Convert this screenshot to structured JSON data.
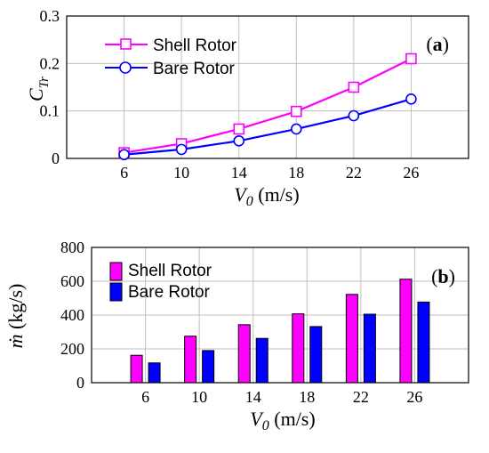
{
  "chart_data": [
    {
      "panel_label": "(a)",
      "type": "line",
      "x": [
        6,
        10,
        14,
        18,
        22,
        26
      ],
      "xlim": [
        2,
        30
      ],
      "ylim": [
        0,
        0.3
      ],
      "yticks": [
        "0",
        "0.1",
        "0.2",
        "0.3"
      ],
      "xticks": [
        "6",
        "10",
        "14",
        "18",
        "22",
        "26"
      ],
      "ylabel": "C",
      "ylabel_sub": "Tr",
      "xlabel": "V",
      "xlabel_sub": "0",
      "xlabel_unit": " (m/s)",
      "grid": true,
      "legend": "top-left",
      "series": [
        {
          "name": "Shell Rotor",
          "color": "#ff00ff",
          "marker": "square",
          "values": [
            0.012,
            0.031,
            0.062,
            0.099,
            0.15,
            0.21
          ]
        },
        {
          "name": "Bare Rotor",
          "color": "#0000ff",
          "marker": "circle",
          "values": [
            0.008,
            0.019,
            0.037,
            0.062,
            0.09,
            0.125
          ]
        }
      ]
    },
    {
      "panel_label": "(b)",
      "type": "bar",
      "categories": [
        "6",
        "10",
        "14",
        "18",
        "22",
        "26"
      ],
      "ylim": [
        0,
        800
      ],
      "yticks": [
        "0",
        "200",
        "400",
        "600",
        "800"
      ],
      "ylabel": "ṁ",
      "ylabel_unit": " (kg/s)",
      "xlabel": "V",
      "xlabel_sub": "0",
      "xlabel_unit": " (m/s)",
      "grid": true,
      "legend": "top-left",
      "series": [
        {
          "name": "Shell Rotor",
          "color": "#ff00ff",
          "values": [
            162,
            275,
            343,
            407,
            522,
            612
          ]
        },
        {
          "name": "Bare Rotor",
          "color": "#0000ff",
          "values": [
            117,
            190,
            262,
            332,
            405,
            477
          ]
        }
      ]
    }
  ]
}
